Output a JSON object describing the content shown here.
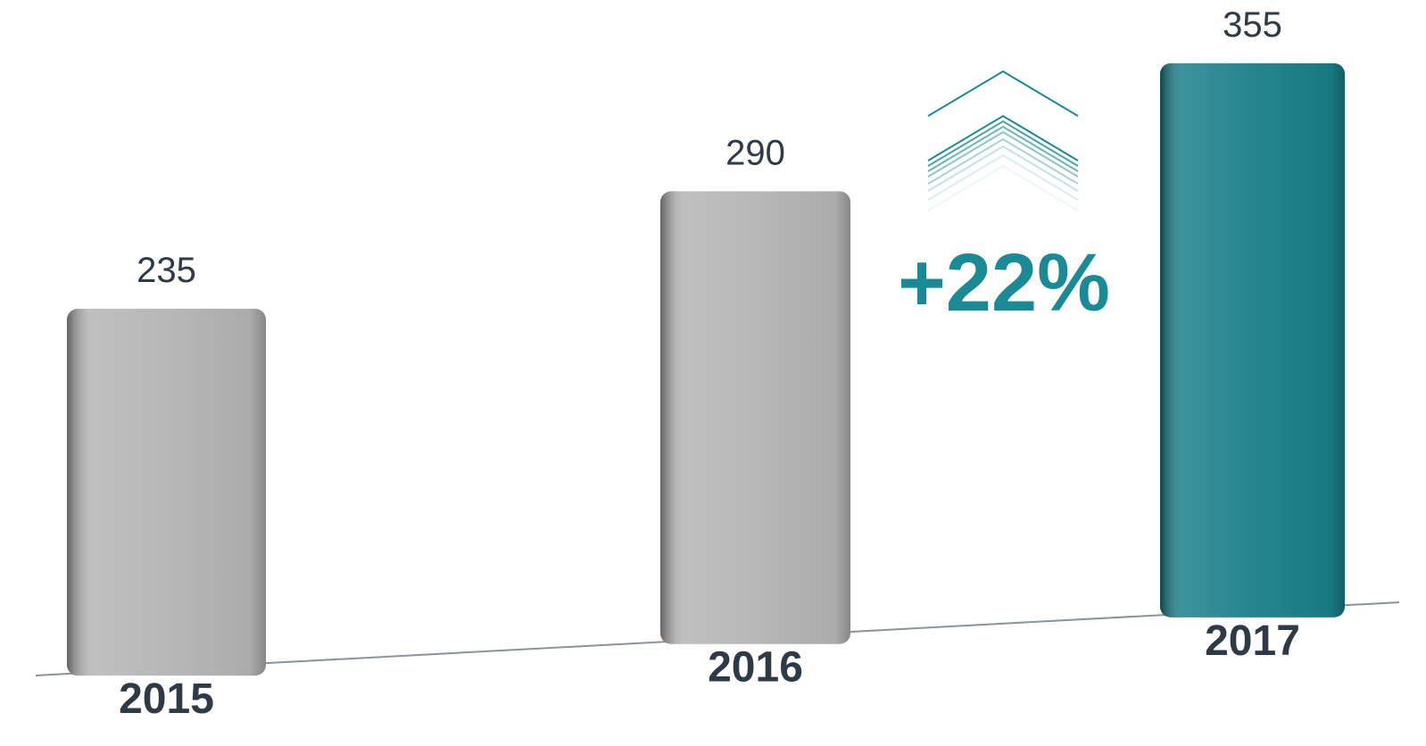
{
  "chart_data": {
    "type": "bar",
    "categories": [
      "2015",
      "2016",
      "2017"
    ],
    "values": [
      235,
      290,
      355
    ],
    "colors": [
      "#b4b4b4",
      "#b4b4b4",
      "#1a7f8a"
    ],
    "annotation": "+22%"
  }
}
